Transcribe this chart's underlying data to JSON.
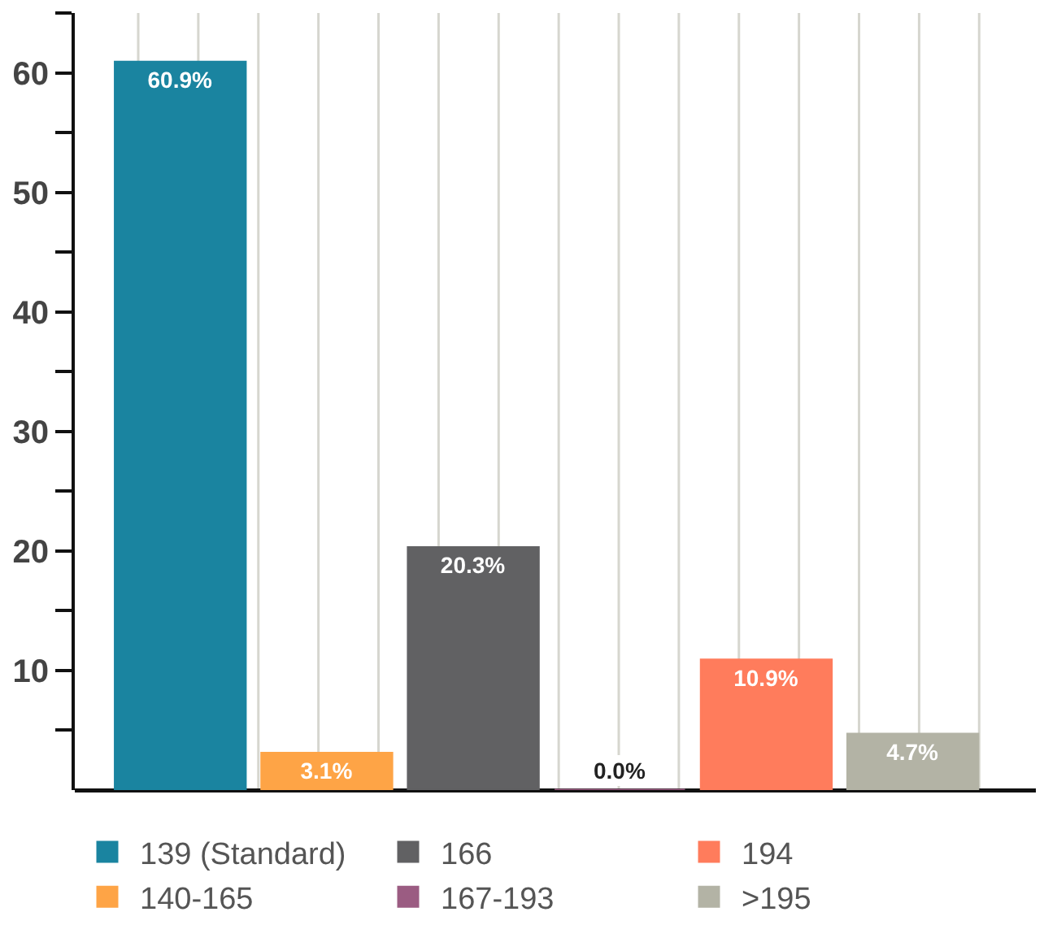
{
  "chart_data": {
    "type": "bar",
    "categories": [
      null,
      null,
      null,
      null,
      null,
      null
    ],
    "series": [
      {
        "name": "139 (Standard)",
        "color": "#1a84a0",
        "values": [
          60.9,
          null,
          null,
          null,
          null,
          null
        ],
        "value_labels": [
          "60.9%",
          null,
          null,
          null,
          null,
          null
        ]
      },
      {
        "name": "140-165",
        "color": "#fea446",
        "values": [
          null,
          3.1,
          null,
          null,
          null,
          null
        ],
        "value_labels": [
          null,
          "3.1%",
          null,
          null,
          null,
          null
        ]
      },
      {
        "name": "166",
        "color": "#616163",
        "values": [
          null,
          null,
          20.3,
          null,
          null,
          null
        ],
        "value_labels": [
          null,
          null,
          "20.3%",
          null,
          null,
          null
        ]
      },
      {
        "name": "167-193",
        "color": "#9b5c82",
        "values": [
          null,
          null,
          null,
          0.0,
          null,
          null
        ],
        "value_labels": [
          null,
          null,
          null,
          "0.0%",
          null,
          null
        ]
      },
      {
        "name": "194",
        "color": "#ff7c5c",
        "values": [
          null,
          null,
          null,
          null,
          10.9,
          null
        ],
        "value_labels": [
          null,
          null,
          null,
          null,
          "10.9%",
          null
        ]
      },
      {
        "name": ">195",
        "color": "#b3b3a5",
        "values": [
          null,
          null,
          null,
          null,
          null,
          4.7
        ],
        "value_labels": [
          null,
          null,
          null,
          null,
          null,
          "4.7%"
        ]
      }
    ],
    "ylim": [
      0,
      65
    ],
    "yticks": [
      {
        "value": 5,
        "label": null
      },
      10,
      {
        "value": 15,
        "label": null
      },
      20,
      {
        "value": 25,
        "label": null
      },
      30,
      {
        "value": 35,
        "label": null
      },
      40,
      {
        "value": 45,
        "label": null
      },
      50,
      {
        "value": 55,
        "label": null
      },
      60,
      {
        "value": 65,
        "label": null
      }
    ],
    "grid": "x",
    "legend": "bottom",
    "tick_labels": "y"
  }
}
